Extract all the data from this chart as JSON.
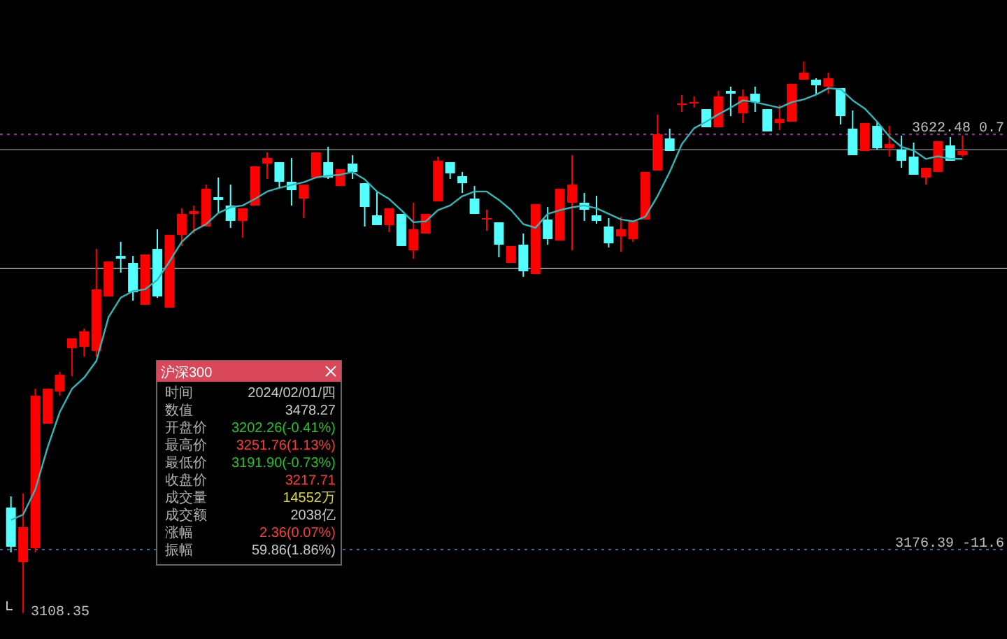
{
  "chart_data": [
    {
      "type": "candlestick",
      "categories": [
        null,
        null,
        null,
        null,
        null,
        null,
        null,
        null,
        null,
        null,
        null,
        null,
        null,
        null,
        null,
        null,
        null,
        null,
        null,
        null,
        null,
        null,
        null,
        null,
        null,
        null,
        null,
        null,
        null,
        null,
        null,
        null,
        null,
        null,
        null,
        null,
        null,
        null,
        null,
        null,
        null,
        null,
        null,
        null,
        null,
        null,
        null,
        null,
        null,
        null,
        null,
        null,
        null,
        null,
        null,
        null,
        null,
        null,
        null,
        null,
        null,
        null,
        null,
        null,
        null,
        null,
        null,
        null,
        null,
        null,
        null,
        null,
        null,
        null,
        null,
        null,
        null,
        null,
        null
      ],
      "ohlc": [
        [
          3221.5,
          3233.5,
          3173.4,
          3179.4
        ],
        [
          3162.9,
          3236.5,
          3108.35,
          3200.5
        ],
        [
          3177.9,
          3349.2,
          3173.4,
          3341.6
        ],
        [
          3311.6,
          3349.2,
          3311.6,
          3349.2
        ],
        [
          3346.2,
          3367.2,
          3341.6,
          3364.2
        ],
        [
          3392.7,
          3403.2,
          3362.7,
          3403.2
        ],
        [
          3394.2,
          3413.7,
          3383.7,
          3410.7
        ],
        [
          3389.7,
          3499.3,
          3383.7,
          3455.8
        ],
        [
          3448.3,
          3485.8,
          3448.3,
          3485.8
        ],
        [
          3491.8,
          3506.9,
          3473.8,
          3488.8
        ],
        [
          3484.3,
          3491.8,
          3443.8,
          3452.8
        ],
        [
          3439.3,
          3493.3,
          3439.3,
          3493.3
        ],
        [
          3499.3,
          3520.4,
          3446.8,
          3448.3
        ],
        [
          3436.3,
          3514.4,
          3436.3,
          3514.4
        ],
        [
          3514.4,
          3542.9,
          3502.4,
          3536.9
        ],
        [
          3536.9,
          3545.9,
          3515.9,
          3539.9
        ],
        [
          3523.4,
          3568.4,
          3523.4,
          3563.9
        ],
        [
          3554.9,
          3576.0,
          3538.4,
          3551.9
        ],
        [
          3545.9,
          3568.4,
          3521.9,
          3529.4
        ],
        [
          3529.4,
          3542.9,
          3511.4,
          3542.9
        ],
        [
          3545.9,
          3588.0,
          3545.9,
          3588.0
        ],
        [
          3591.0,
          3603.0,
          3574.4,
          3597.0
        ],
        [
          3592.5,
          3592.5,
          3563.9,
          3571.4
        ],
        [
          3571.4,
          3597.0,
          3545.9,
          3562.4
        ],
        [
          3553.4,
          3568.4,
          3532.4,
          3568.4
        ],
        [
          3576.0,
          3603.0,
          3576.0,
          3603.0
        ],
        [
          3592.5,
          3609.0,
          3574.4,
          3576.0
        ],
        [
          3566.9,
          3585.0,
          3566.9,
          3585.0
        ],
        [
          3591.0,
          3600.0,
          3574.4,
          3582.0
        ],
        [
          3569.9,
          3569.9,
          3523.4,
          3544.4
        ],
        [
          3535.4,
          3560.9,
          3524.9,
          3524.9
        ],
        [
          3524.9,
          3542.9,
          3517.4,
          3542.9
        ],
        [
          3536.9,
          3536.9,
          3502.4,
          3502.4
        ],
        [
          3497.8,
          3548.9,
          3488.8,
          3520.4
        ],
        [
          3515.9,
          3536.9,
          3515.9,
          3536.9
        ],
        [
          3550.4,
          3598.5,
          3550.4,
          3594.0
        ],
        [
          3592.5,
          3592.5,
          3574.4,
          3580.5
        ],
        [
          3577.5,
          3582.0,
          3559.4,
          3569.9
        ],
        [
          3553.4,
          3566.9,
          3536.9,
          3536.9
        ],
        [
          3532.4,
          3541.4,
          3518.9,
          3532.4
        ],
        [
          3527.9,
          3527.9,
          3490.3,
          3503.9
        ],
        [
          3484.3,
          3502.4,
          3484.3,
          3502.4
        ],
        [
          3503.9,
          3515.9,
          3469.4,
          3475.3
        ],
        [
          3472.3,
          3547.4,
          3472.3,
          3547.4
        ],
        [
          3530.9,
          3544.4,
          3503.9,
          3509.9
        ],
        [
          3508.4,
          3563.9,
          3508.4,
          3563.9
        ],
        [
          3548.9,
          3600.0,
          3497.8,
          3568.4
        ],
        [
          3548.9,
          3559.4,
          3529.4,
          3541.4
        ],
        [
          3535.4,
          3556.4,
          3526.4,
          3529.4
        ],
        [
          3523.4,
          3532.4,
          3500.9,
          3505.4
        ],
        [
          3512.9,
          3533.9,
          3496.3,
          3520.4
        ],
        [
          3509.9,
          3529.4,
          3506.9,
          3529.4
        ],
        [
          3530.9,
          3582.0,
          3530.9,
          3582.0
        ],
        [
          3583.5,
          3643.5,
          3583.5,
          3622.5
        ],
        [
          3618.0,
          3628.5,
          3604.5,
          3604.5
        ],
        [
          3655.6,
          3664.6,
          3646.5,
          3655.6
        ],
        [
          3657.1,
          3663.1,
          3651.1,
          3657.1
        ],
        [
          3649.5,
          3649.5,
          3630.0,
          3630.0
        ],
        [
          3630.0,
          3669.1,
          3630.0,
          3663.1
        ],
        [
          3669.1,
          3673.6,
          3642.0,
          3666.1
        ],
        [
          3645.0,
          3670.6,
          3634.5,
          3663.1
        ],
        [
          3666.1,
          3673.6,
          3646.5,
          3657.1
        ],
        [
          3649.5,
          3649.5,
          3625.5,
          3625.5
        ],
        [
          3634.5,
          3654.1,
          3627.0,
          3639.0
        ],
        [
          3636.0,
          3676.6,
          3636.0,
          3676.6
        ],
        [
          3681.1,
          3700.6,
          3681.1,
          3688.6
        ],
        [
          3681.1,
          3682.6,
          3664.6,
          3675.1
        ],
        [
          3673.6,
          3688.6,
          3666.1,
          3682.6
        ],
        [
          3672.1,
          3672.1,
          3633.0,
          3642.0
        ],
        [
          3628.5,
          3648.0,
          3600.0,
          3600.0
        ],
        [
          3604.5,
          3634.5,
          3604.5,
          3634.5
        ],
        [
          3631.5,
          3636.0,
          3606.0,
          3607.5
        ],
        [
          3607.5,
          3631.5,
          3598.5,
          3612.0
        ],
        [
          3606.0,
          3621.0,
          3586.5,
          3594.0
        ],
        [
          3598.5,
          3613.5,
          3579.0,
          3579.0
        ],
        [
          3576.0,
          3586.5,
          3568.4,
          3586.5
        ],
        [
          3582.0,
          3615.0,
          3582.0,
          3615.0
        ],
        [
          3610.5,
          3619.5,
          3594.0,
          3594.0
        ],
        [
          3600.0,
          3621.0,
          3598.5,
          3604.5
        ]
      ],
      "colors": [
        "#54ffff",
        "#ff0000",
        "#ff0000",
        "#ff0000",
        "#ff0000",
        "#ff0000",
        "#ff0000",
        "#ff0000",
        "#ff0000",
        "#54ffff",
        "#54ffff",
        "#ff0000",
        "#54ffff",
        "#ff0000",
        "#ff0000",
        "#ff0000",
        "#ff0000",
        "#54ffff",
        "#54ffff",
        "#ff0000",
        "#ff0000",
        "#ff0000",
        "#54ffff",
        "#54ffff",
        "#ff0000",
        "#ff0000",
        "#54ffff",
        "#ff0000",
        "#54ffff",
        "#54ffff",
        "#54ffff",
        "#ff0000",
        "#54ffff",
        "#ff0000",
        "#ff0000",
        "#ff0000",
        "#54ffff",
        "#54ffff",
        "#54ffff",
        "#ff0000",
        "#54ffff",
        "#ff0000",
        "#54ffff",
        "#ff0000",
        "#54ffff",
        "#ff0000",
        "#ff0000",
        "#54ffff",
        "#54ffff",
        "#54ffff",
        "#ff0000",
        "#ff0000",
        "#ff0000",
        "#ff0000",
        "#54ffff",
        "#ff0000",
        "#ff0000",
        "#54ffff",
        "#ff0000",
        "#54ffff",
        "#ff0000",
        "#54ffff",
        "#54ffff",
        "#ff0000",
        "#ff0000",
        "#ff0000",
        "#54ffff",
        "#ff0000",
        "#54ffff",
        "#54ffff",
        "#ff0000",
        "#54ffff",
        "#ff0000",
        "#54ffff",
        "#54ffff",
        "#ff0000",
        "#ff0000",
        "#54ffff",
        "#ff0000"
      ],
      "series": [
        {
          "type": "line",
          "color": "#2fb8b8",
          "values": [
            3208,
            3214,
            3241,
            3286,
            3324,
            3349,
            3361,
            3379,
            3426,
            3447,
            3454,
            3456,
            3466,
            3486,
            3507,
            3519,
            3526,
            3538,
            3544,
            3546,
            3553,
            3561,
            3565,
            3568,
            3571,
            3576,
            3578,
            3579,
            3582,
            3574,
            3561,
            3553,
            3541,
            3528,
            3529,
            3541,
            3546,
            3556,
            3561,
            3561,
            3552,
            3541,
            3526,
            3522,
            3537,
            3541,
            3544,
            3546,
            3543,
            3537,
            3531,
            3529,
            3534,
            3556,
            3582,
            3612,
            3629,
            3636,
            3644,
            3651,
            3659,
            3657,
            3654,
            3651,
            3657,
            3660,
            3665,
            3672,
            3671,
            3659,
            3650,
            3636,
            3620,
            3609,
            3605,
            3596,
            3599,
            3596,
            3596
          ]
        }
      ],
      "ylim": [
        3080.3,
        3766.7
      ],
      "tick_labels": false,
      "ref_lines": [
        {
          "axis": "y",
          "value": 3622.48,
          "label": "3622.48 0.7",
          "color": "#9a2a9a",
          "line_style": "dotted"
        },
        {
          "axis": "y",
          "value": 3176.39,
          "label": "3176.39 -11.6",
          "color": "#2a6fa8",
          "line_style": "dotted"
        },
        {
          "axis": "y",
          "value": 3478.27,
          "color": "#8a8a8a",
          "line_style": "solid"
        },
        {
          "axis": "y",
          "value": 3606.0,
          "color": "#5a5a5a",
          "line_style": "solid"
        }
      ],
      "annotations": [
        "3108.35"
      ]
    },
    {
      "type": "other",
      "title": "沪深300",
      "categories": [
        "时间",
        "数值",
        "开盘价",
        "最高价",
        "最低价",
        "收盘价",
        "成交量",
        "成交额",
        "涨幅",
        "振幅"
      ],
      "value_labels": [
        "2024/02/01/四",
        "3478.27",
        "3202.26(-0.41%)",
        "3251.76(1.13%)",
        "3191.90(-0.73%)",
        "3217.71",
        "14552万",
        "2038亿",
        "2.36(0.07%)",
        "59.86(1.86%)"
      ],
      "colors": [
        "#c8c8c8",
        "#c8c8c8",
        "#22c422",
        "#ff3a3a",
        "#22c422",
        "#ff3a3a",
        "#d8d830",
        "#c8c8c8",
        "#ff3a3a",
        "#c8c8c8"
      ]
    }
  ]
}
